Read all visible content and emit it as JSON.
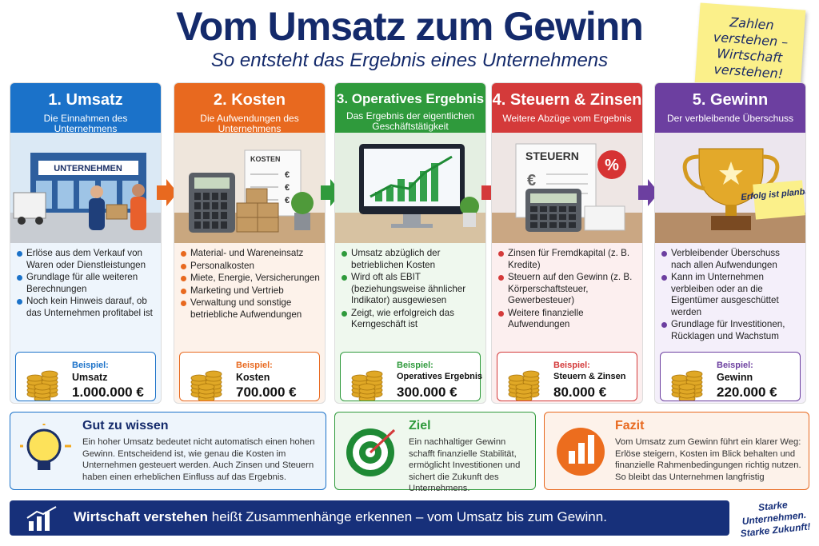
{
  "header": {
    "title": "Vom Umsatz zum Gewinn",
    "subtitle": "So entsteht das Ergebnis eines Unternehmens"
  },
  "sticky_note": "Zahlen verstehen – Wirtschaft verstehen!",
  "steps": [
    {
      "title": "1. Umsatz",
      "subtitle": "Die Einnahmen des Unternehmens",
      "image_text": [
        "UNTERNEHMEN"
      ],
      "bullets": [
        "Erlöse aus dem Verkauf von Waren oder Dienstleistungen",
        "Grundlage für alle weiteren Berechnungen",
        "Noch kein Hinweis darauf, ob das Unternehmen profitabel ist"
      ],
      "example": {
        "label": "Beispiel:",
        "name": "Umsatz",
        "value": "1.000.000 €"
      }
    },
    {
      "title": "2. Kosten",
      "subtitle": "Die Aufwendungen des Unternehmens",
      "image_text": [
        "KOSTEN",
        "€",
        "€",
        "€"
      ],
      "bullets": [
        "Material- und Wareneinsatz",
        "Personalkosten",
        "Miete, Energie, Versicherungen",
        "Marketing und Vertrieb",
        "Verwaltung und sonstige betriebliche Aufwendungen"
      ],
      "example": {
        "label": "Beispiel:",
        "name": "Kosten",
        "value": "700.000 €"
      }
    },
    {
      "title": "3. Operatives Ergebnis",
      "subtitle": "Das Ergebnis der eigentlichen Geschäftstätigkeit",
      "image_text": [],
      "bullets": [
        "Umsatz abzüglich der betrieblichen Kosten",
        "Wird oft als EBIT (beziehungsweise ähnlicher Indikator) ausgewiesen",
        "Zeigt, wie erfolgreich das Kerngeschäft ist"
      ],
      "example": {
        "label": "Beispiel:",
        "name": "Operatives Ergebnis",
        "value": "300.000 €"
      }
    },
    {
      "title": "4. Steuern & Zinsen",
      "subtitle": "Weitere Abzüge vom Ergebnis",
      "image_text": [
        "STEUERN",
        "€",
        "%"
      ],
      "bullets": [
        "Zinsen für Fremdkapital (z. B. Kredite)",
        "Steuern auf den Gewinn (z. B. Körperschaftsteuer, Gewerbesteuer)",
        "Weitere finanzielle Aufwendungen"
      ],
      "example": {
        "label": "Beispiel:",
        "name": "Steuern & Zinsen",
        "value": "80.000 €"
      }
    },
    {
      "title": "5. Gewinn",
      "subtitle": "Der verbleibende Überschuss",
      "image_text": [
        "Erfolg ist planbar!"
      ],
      "bullets": [
        "Verbleibender Überschuss nach allen Aufwendungen",
        "Kann im Unternehmen verbleiben oder an die Eigentümer ausgeschüttet werden",
        "Grundlage für Investitionen, Rücklagen und Wachstum"
      ],
      "example": {
        "label": "Beispiel:",
        "name": "Gewinn",
        "value": "220.000 €"
      }
    }
  ],
  "info_boxes": [
    {
      "title": "Gut zu wissen",
      "text": "Ein hoher Umsatz bedeutet nicht automatisch einen hohen Gewinn. Entscheidend ist, wie genau die Kosten im Unternehmen gesteuert werden. Auch Zinsen und Steuern haben einen erheblichen Einfluss auf das Ergebnis."
    },
    {
      "title": "Ziel",
      "text": "Ein nachhaltiger Gewinn schafft finanzielle Stabilität, ermöglicht Investitionen und sichert die Zukunft des Unternehmens."
    },
    {
      "title": "Fazit",
      "text": "Vom Umsatz zum Gewinn führt ein klarer Weg: Erlöse steigern, Kosten im Blick behalten und finanzielle Rahmenbedingungen richtig nutzen. So bleibt das Unternehmen langfristig"
    }
  ],
  "footer": {
    "bold": "Wirtschaft verstehen",
    "text": "heißt Zusammenhänge erkennen – vom Umsatz bis zum Gewinn.",
    "slogan": "Starke Unternehmen. Starke Zukunft!"
  }
}
